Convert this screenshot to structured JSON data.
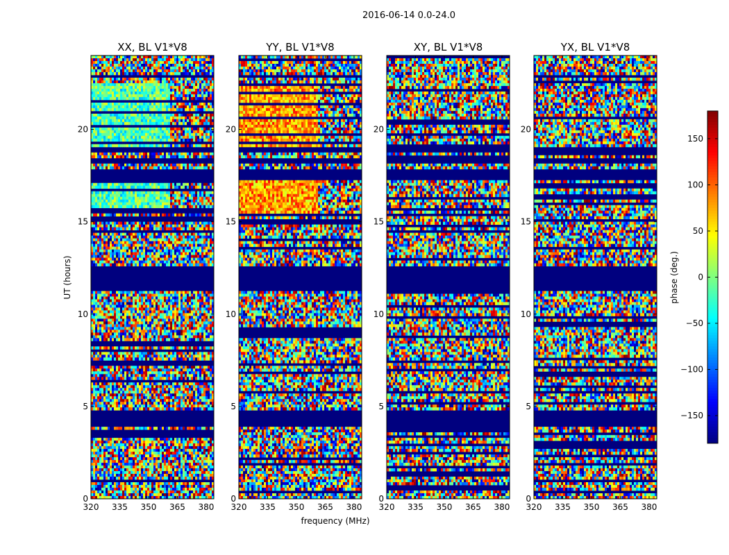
{
  "chart_data": {
    "type": "heatmap",
    "suptitle": "2016-06-14 0.0-24.0",
    "xlabel": "frequency (MHz)",
    "ylabel": "UT (hours)",
    "xlim": [
      320,
      384
    ],
    "ylim": [
      0,
      24
    ],
    "xticks": [
      320,
      335,
      350,
      365,
      380
    ],
    "yticks": [
      0,
      5,
      10,
      15,
      20
    ],
    "panels": [
      {
        "title": "XX, BL V1*V8",
        "polarization": "XX"
      },
      {
        "title": "YY, BL V1*V8",
        "polarization": "YY"
      },
      {
        "title": "XY, BL V1*V8",
        "polarization": "XY"
      },
      {
        "title": "YX, BL V1*V8",
        "polarization": "YX"
      }
    ],
    "colorbar": {
      "label": "phase (deg.)",
      "range": [
        -180,
        180
      ],
      "ticks": [
        -150,
        -100,
        -50,
        0,
        50,
        100,
        150
      ],
      "tick_labels": [
        "−150",
        "−100",
        "−50",
        "0",
        "50",
        "100",
        "150"
      ],
      "colormap": "jet"
    },
    "masked_ut_ranges": [
      [
        3.9,
        4.8
      ],
      [
        11.3,
        12.6
      ],
      [
        17.3,
        17.9
      ],
      [
        18.1,
        18.5
      ],
      [
        18.8,
        19.0
      ]
    ],
    "colors": {
      "masked": "#00007f",
      "frame": "#000000",
      "background": "#ffffff"
    }
  }
}
